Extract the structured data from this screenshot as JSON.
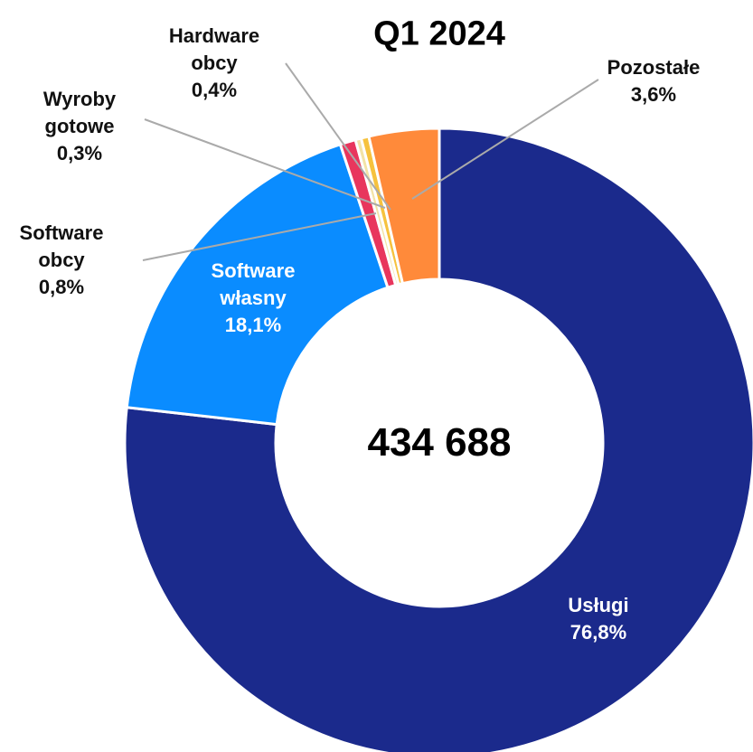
{
  "chart_data": {
    "type": "donut",
    "title": "Q1 2024",
    "center_label": "434 688",
    "categories": [
      "Usługi",
      "Software własny",
      "Software obcy",
      "Wyroby gotowe",
      "Hardware obcy",
      "Pozostałe"
    ],
    "values": [
      76.8,
      18.1,
      0.8,
      0.3,
      0.4,
      3.6
    ],
    "value_labels": [
      "76,8%",
      "18,1%",
      "0,8%",
      "0,3%",
      "0,4%",
      "3,6%"
    ],
    "colors": [
      "#1b2a8c",
      "#0a8cff",
      "#e8365d",
      "#f3e3a6",
      "#f6c23e",
      "#ff8a3a"
    ]
  }
}
